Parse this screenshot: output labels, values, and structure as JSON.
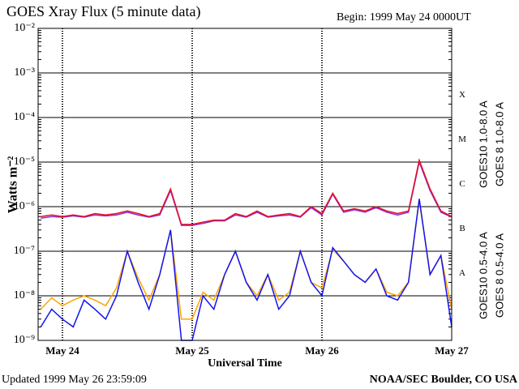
{
  "chart_data": {
    "type": "line",
    "title": "GOES Xray Flux (5 minute data)",
    "subtitle": "Begin:  1999 May 24 0000UT",
    "ylabel": "Watts m⁻²",
    "xlabel": "Universal Time",
    "footer_left": "Updated 1999 May 26 23:59:09",
    "footer_right": "NOAA/SEC Boulder, CO USA",
    "log_y": true,
    "grid": true,
    "class_labels": [
      "X",
      "M",
      "C",
      "B",
      "A"
    ],
    "xlim": [
      -4.5,
      72
    ],
    "xticks": [
      {
        "value": 0,
        "label": "May 24"
      },
      {
        "value": 24,
        "label": "May 25"
      },
      {
        "value": 48,
        "label": "May 26"
      },
      {
        "value": 72,
        "label": "May 27"
      }
    ],
    "ylim": [
      1e-09,
      0.01
    ],
    "yticks": [
      {
        "value": 1e-09,
        "label": "10⁻⁹"
      },
      {
        "value": 1e-08,
        "label": "10⁻⁸"
      },
      {
        "value": 1e-07,
        "label": "10⁻⁷"
      },
      {
        "value": 1e-06,
        "label": "10⁻⁶"
      },
      {
        "value": 1e-05,
        "label": "10⁻⁵"
      },
      {
        "value": 0.0001,
        "label": "10⁻⁴"
      },
      {
        "value": 0.001,
        "label": "10⁻³"
      },
      {
        "value": 0.01,
        "label": "10⁻²"
      }
    ],
    "x": [
      -4,
      -2,
      0,
      2,
      4,
      6,
      8,
      10,
      12,
      14,
      16,
      18,
      20,
      22,
      24,
      26,
      28,
      30,
      32,
      34,
      36,
      38,
      40,
      42,
      44,
      46,
      48,
      50,
      52,
      54,
      56,
      58,
      60,
      62,
      64,
      66,
      68,
      70,
      72
    ],
    "series": [
      {
        "name": "GOES10 1.0-8.0 A",
        "color": "#8a2be2",
        "values": [
          5.5e-07,
          6e-07,
          5.8e-07,
          6.2e-07,
          5.8e-07,
          6.5e-07,
          6.2e-07,
          6.5e-07,
          7.5e-07,
          6.5e-07,
          5.8e-07,
          6.5e-07,
          2.3e-06,
          3.8e-07,
          3.8e-07,
          4.2e-07,
          4.8e-07,
          4.8e-07,
          6.5e-07,
          5.8e-07,
          7.5e-07,
          5.8e-07,
          6.2e-07,
          6.5e-07,
          5.8e-07,
          9.5e-07,
          6.5e-07,
          1.9e-06,
          7.5e-07,
          8.5e-07,
          7.5e-07,
          9.5e-07,
          7.5e-07,
          6.5e-07,
          7.5e-07,
          1e-05,
          2.3e-06,
          7.5e-07,
          5.8e-07
        ]
      },
      {
        "name": "GOES 8 1.0-8.0 A",
        "color": "#e8101c",
        "values": [
          6e-07,
          6.5e-07,
          6e-07,
          6.5e-07,
          6e-07,
          7e-07,
          6.5e-07,
          7e-07,
          8e-07,
          7e-07,
          6e-07,
          7e-07,
          2.5e-06,
          4e-07,
          4e-07,
          4.5e-07,
          5e-07,
          5e-07,
          7e-07,
          6e-07,
          8e-07,
          6e-07,
          6.5e-07,
          7e-07,
          6e-07,
          1e-06,
          7e-07,
          2e-06,
          8e-07,
          9e-07,
          8e-07,
          1e-06,
          8e-07,
          7e-07,
          8e-07,
          1.1e-05,
          2.5e-06,
          8e-07,
          6e-07
        ]
      },
      {
        "name": "GOES10 0.5-4.0 A",
        "color": "#ffa500",
        "values": [
          5e-09,
          9e-09,
          6e-09,
          8e-09,
          1e-08,
          8e-09,
          6e-09,
          1.5e-08,
          1e-07,
          2.5e-08,
          8e-09,
          3e-08,
          3e-07,
          3e-09,
          3e-09,
          1.2e-08,
          8e-09,
          3e-08,
          1e-07,
          2e-08,
          1e-08,
          3e-08,
          8e-09,
          1.2e-08,
          1e-07,
          2e-08,
          1.5e-08,
          1.1e-07,
          6e-08,
          3e-08,
          2e-08,
          4e-08,
          1.2e-08,
          1e-08,
          2e-08,
          1.4e-06,
          3e-08,
          8e-08,
          5e-09
        ]
      },
      {
        "name": "GOES 8 0.5-4.0 A",
        "color": "#1414f0",
        "values": [
          2e-09,
          5e-09,
          3e-09,
          2e-09,
          8e-09,
          5e-09,
          3e-09,
          1e-08,
          1e-07,
          2e-08,
          5e-09,
          3e-08,
          3e-07,
          1e-09,
          1e-09,
          1e-08,
          5e-09,
          3e-08,
          1e-07,
          2e-08,
          8e-09,
          3e-08,
          5e-09,
          1e-08,
          1e-07,
          2e-08,
          1e-08,
          1.2e-07,
          6e-08,
          3e-08,
          2e-08,
          4e-08,
          1e-08,
          8e-09,
          2e-08,
          1.5e-06,
          3e-08,
          8e-08,
          2e-09
        ]
      }
    ]
  }
}
